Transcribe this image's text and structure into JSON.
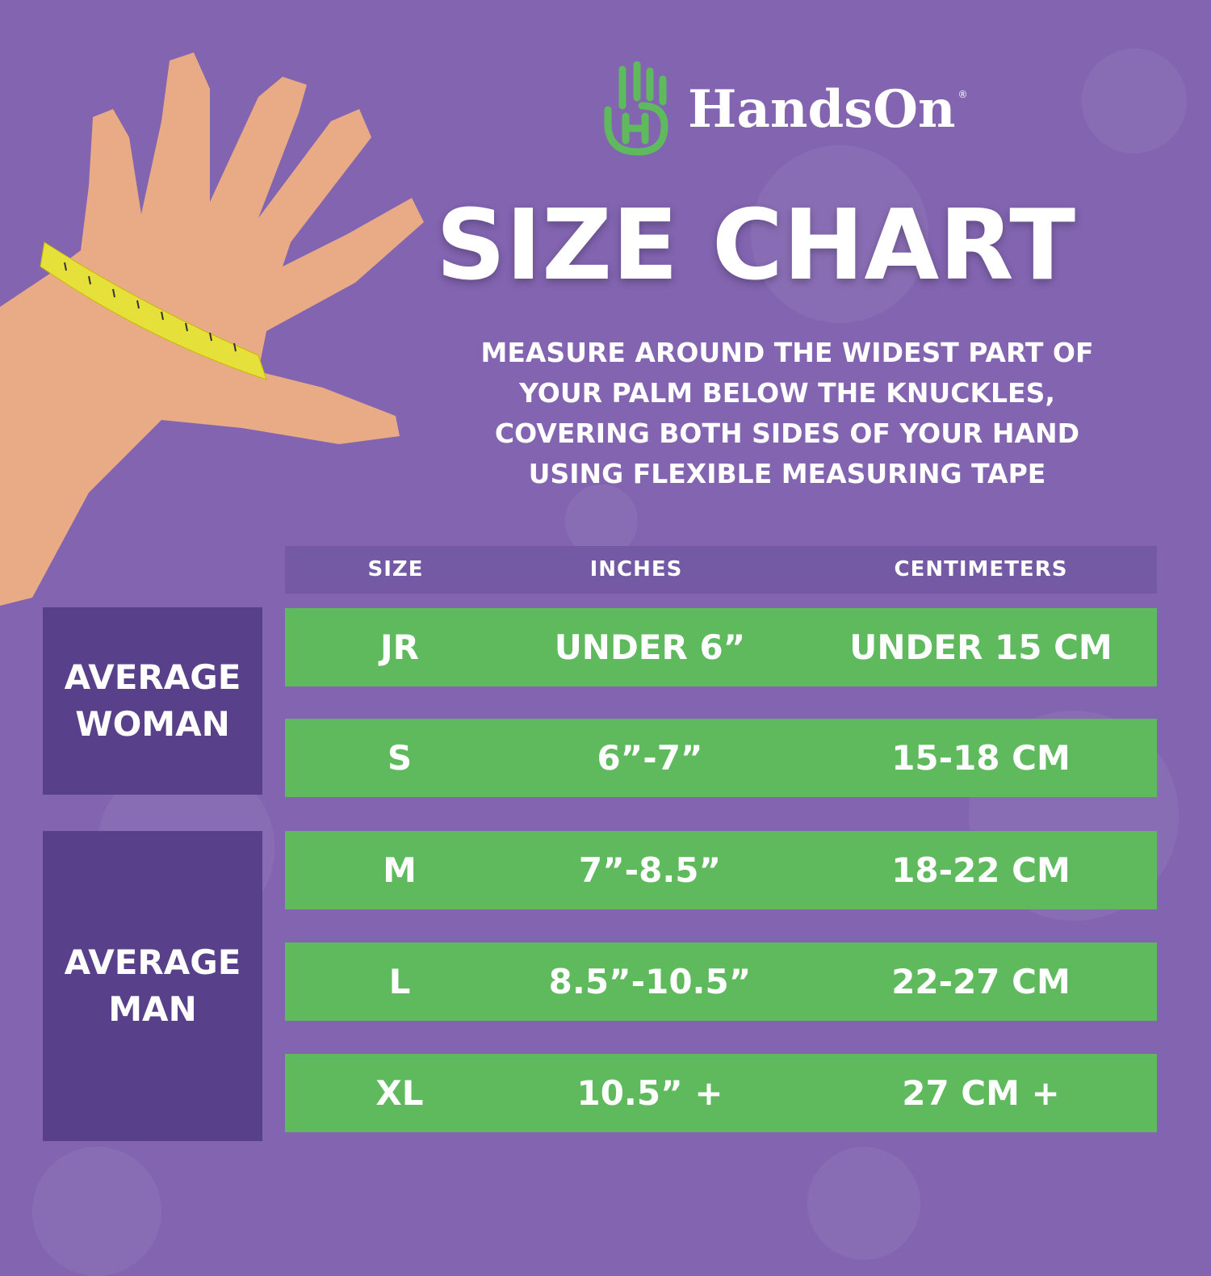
{
  "brand": {
    "name": "HandsOn",
    "registered": "®",
    "logo_color": "#5fba5e"
  },
  "title": "SIZE CHART",
  "instructions": "MEASURE AROUND THE WIDEST PART OF YOUR PALM BELOW THE KNUCKLES, COVERING BOTH SIDES OF YOUR HAND USING FLEXIBLE MEASURING TAPE",
  "colors": {
    "background": "#8264b0",
    "panel": "#58418a",
    "header": "#7459a5",
    "row": "#5fba5e"
  },
  "table": {
    "headers": [
      "SIZE",
      "INCHES",
      "CENTIMETERS"
    ],
    "rows": [
      {
        "size": "JR",
        "inches": "UNDER 6”",
        "cm": "UNDER 15 CM"
      },
      {
        "size": "S",
        "inches": "6”-7”",
        "cm": "15-18 CM"
      },
      {
        "size": "M",
        "inches": "7”-8.5”",
        "cm": "18-22 CM"
      },
      {
        "size": "L",
        "inches": "8.5”-10.5”",
        "cm": "22-27 CM"
      },
      {
        "size": "XL",
        "inches": "10.5” +",
        "cm": "27 CM +"
      }
    ]
  },
  "groups": [
    {
      "label": "AVERAGE WOMAN"
    },
    {
      "label": "AVERAGE MAN"
    }
  ]
}
